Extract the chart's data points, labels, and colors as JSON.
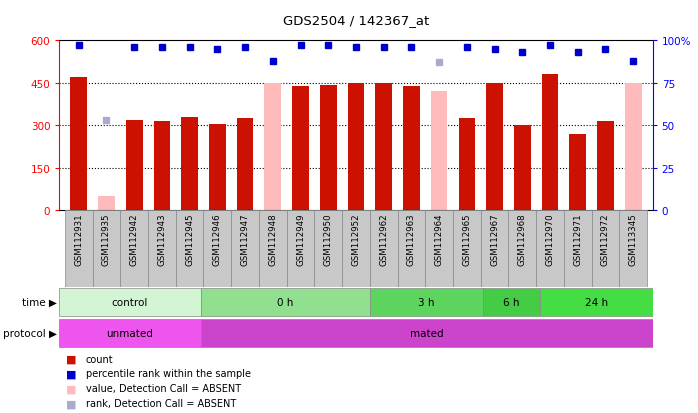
{
  "title": "GDS2504 / 142367_at",
  "samples": [
    "GSM112931",
    "GSM112935",
    "GSM112942",
    "GSM112943",
    "GSM112945",
    "GSM112946",
    "GSM112947",
    "GSM112948",
    "GSM112949",
    "GSM112950",
    "GSM112952",
    "GSM112962",
    "GSM112963",
    "GSM112964",
    "GSM112965",
    "GSM112967",
    "GSM112968",
    "GSM112970",
    "GSM112971",
    "GSM112972",
    "GSM113345"
  ],
  "count_values": [
    470,
    50,
    320,
    315,
    330,
    305,
    325,
    448,
    438,
    442,
    450,
    448,
    440,
    420,
    325,
    448,
    300,
    480,
    270,
    315,
    450
  ],
  "count_absent": [
    false,
    true,
    false,
    false,
    false,
    false,
    false,
    true,
    false,
    false,
    false,
    false,
    false,
    true,
    false,
    false,
    false,
    false,
    false,
    false,
    true
  ],
  "percentile_values": [
    97,
    53,
    96,
    96,
    96,
    95,
    96,
    88,
    97,
    97,
    96,
    96,
    96,
    87,
    96,
    95,
    93,
    97,
    93,
    95,
    88
  ],
  "rank_absent_idx": [
    1,
    13
  ],
  "time_groups": [
    {
      "label": "control",
      "start": 0,
      "end": 5,
      "color": "#d4f5d4"
    },
    {
      "label": "0 h",
      "start": 5,
      "end": 11,
      "color": "#90e090"
    },
    {
      "label": "3 h",
      "start": 11,
      "end": 15,
      "color": "#5dd45d"
    },
    {
      "label": "6 h",
      "start": 15,
      "end": 17,
      "color": "#44cc44"
    },
    {
      "label": "24 h",
      "start": 17,
      "end": 21,
      "color": "#44dd44"
    }
  ],
  "protocol_groups": [
    {
      "label": "unmated",
      "start": 0,
      "end": 5,
      "color": "#ee55ee"
    },
    {
      "label": "mated",
      "start": 5,
      "end": 21,
      "color": "#cc44cc"
    }
  ],
  "ylim_left": [
    0,
    600
  ],
  "ylim_right": [
    0,
    100
  ],
  "yticks_left": [
    0,
    150,
    300,
    450,
    600
  ],
  "yticks_right": [
    0,
    25,
    50,
    75,
    100
  ],
  "bar_color_present": "#cc1100",
  "bar_color_absent": "#ffbbbb",
  "dot_color_present": "#0000cc",
  "dot_color_absent": "#aaaacc"
}
